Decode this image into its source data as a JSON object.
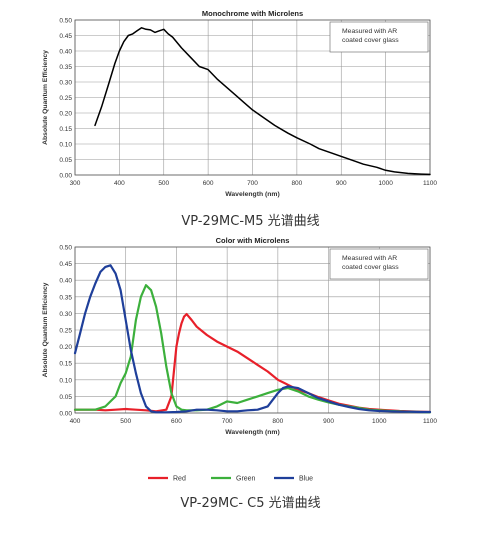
{
  "chart_data": [
    {
      "type": "line",
      "title": "Monochrome with Microlens",
      "xlabel": "Wavelength (nm)",
      "ylabel": "Absolute Quantum Efficiency",
      "xlim": [
        300,
        1100
      ],
      "ylim": [
        0,
        0.5
      ],
      "xticks": [
        "300",
        "400",
        "500",
        "600",
        "700",
        "800",
        "900",
        "1000",
        "1100"
      ],
      "yticks": [
        "0.00",
        "0.05",
        "0.10",
        "0.15",
        "0.20",
        "0.25",
        "0.30",
        "0.35",
        "0.40",
        "0.45",
        "0.50"
      ],
      "annotation": [
        "Measured with AR",
        "coated cover glass"
      ],
      "grid": true,
      "caption": "VP-29MC-M5 光谱曲线",
      "series": [
        {
          "color": "#000000",
          "x": [
            345,
            360,
            375,
            390,
            400,
            410,
            420,
            430,
            440,
            450,
            460,
            470,
            480,
            490,
            500,
            510,
            520,
            540,
            560,
            580,
            600,
            620,
            640,
            660,
            680,
            700,
            720,
            750,
            780,
            800,
            830,
            850,
            880,
            900,
            930,
            950,
            980,
            1000,
            1020,
            1050,
            1080,
            1100
          ],
          "y": [
            0.16,
            0.22,
            0.29,
            0.36,
            0.4,
            0.43,
            0.45,
            0.455,
            0.465,
            0.475,
            0.47,
            0.468,
            0.46,
            0.465,
            0.47,
            0.455,
            0.445,
            0.41,
            0.38,
            0.35,
            0.34,
            0.31,
            0.285,
            0.26,
            0.235,
            0.21,
            0.19,
            0.16,
            0.135,
            0.12,
            0.1,
            0.085,
            0.07,
            0.06,
            0.045,
            0.035,
            0.025,
            0.015,
            0.01,
            0.005,
            0.003,
            0.002
          ]
        }
      ]
    },
    {
      "type": "line",
      "title": "Color with Microlens",
      "xlabel": "Wavelength (nm)",
      "ylabel": "Absolute Quantum Efficiency",
      "xlim": [
        400,
        1100
      ],
      "ylim": [
        0,
        0.5
      ],
      "xticks": [
        "400",
        "500",
        "600",
        "700",
        "800",
        "900",
        "1000",
        "1100"
      ],
      "yticks": [
        "0.00",
        "0.05",
        "0.10",
        "0.15",
        "0.20",
        "0.25",
        "0.30",
        "0.35",
        "0.40",
        "0.45",
        "0.50"
      ],
      "annotation": [
        "Measured with AR",
        "coated cover glass"
      ],
      "grid": true,
      "legend": "bottom",
      "caption": "VP-29MC- C5 光谱曲线",
      "series": [
        {
          "name": "Red",
          "color": "#e8202a",
          "x": [
            400,
            420,
            440,
            460,
            480,
            500,
            520,
            540,
            560,
            580,
            590,
            600,
            605,
            610,
            615,
            620,
            630,
            640,
            660,
            680,
            700,
            720,
            740,
            760,
            780,
            800,
            820,
            840,
            860,
            880,
            900,
            920,
            940,
            960,
            980,
            1000,
            1020,
            1040,
            1060,
            1080,
            1100
          ],
          "y": [
            0.01,
            0.01,
            0.01,
            0.008,
            0.01,
            0.012,
            0.01,
            0.008,
            0.005,
            0.01,
            0.05,
            0.2,
            0.24,
            0.27,
            0.29,
            0.298,
            0.28,
            0.26,
            0.235,
            0.215,
            0.2,
            0.185,
            0.165,
            0.145,
            0.125,
            0.1,
            0.085,
            0.07,
            0.06,
            0.048,
            0.038,
            0.028,
            0.022,
            0.016,
            0.012,
            0.01,
            0.008,
            0.006,
            0.005,
            0.004,
            0.003
          ]
        },
        {
          "name": "Green",
          "color": "#3cb03c",
          "x": [
            400,
            420,
            440,
            460,
            480,
            490,
            500,
            510,
            520,
            530,
            540,
            550,
            560,
            570,
            580,
            590,
            600,
            610,
            620,
            640,
            660,
            680,
            700,
            720,
            740,
            760,
            780,
            800,
            820,
            840,
            860,
            880,
            900,
            920,
            940,
            960,
            980,
            1000,
            1020,
            1040,
            1060,
            1080,
            1100
          ],
          "y": [
            0.01,
            0.01,
            0.01,
            0.02,
            0.05,
            0.09,
            0.12,
            0.17,
            0.28,
            0.35,
            0.385,
            0.37,
            0.32,
            0.24,
            0.14,
            0.06,
            0.02,
            0.01,
            0.008,
            0.008,
            0.01,
            0.02,
            0.035,
            0.03,
            0.04,
            0.05,
            0.06,
            0.07,
            0.075,
            0.065,
            0.05,
            0.04,
            0.032,
            0.025,
            0.02,
            0.015,
            0.01,
            0.008,
            0.006,
            0.005,
            0.004,
            0.003,
            0.002
          ]
        },
        {
          "name": "Blue",
          "color": "#1f3f9a",
          "x": [
            400,
            410,
            420,
            430,
            440,
            450,
            460,
            470,
            480,
            490,
            500,
            510,
            520,
            530,
            540,
            550,
            560,
            580,
            600,
            620,
            640,
            660,
            680,
            700,
            720,
            740,
            760,
            780,
            800,
            810,
            820,
            840,
            860,
            880,
            900,
            920,
            940,
            960,
            980,
            1000,
            1020,
            1040,
            1060,
            1080,
            1100
          ],
          "y": [
            0.18,
            0.24,
            0.3,
            0.35,
            0.39,
            0.425,
            0.44,
            0.445,
            0.42,
            0.37,
            0.28,
            0.19,
            0.12,
            0.06,
            0.02,
            0.005,
            0.002,
            0.002,
            0.003,
            0.005,
            0.01,
            0.01,
            0.008,
            0.005,
            0.005,
            0.008,
            0.01,
            0.02,
            0.06,
            0.075,
            0.08,
            0.075,
            0.06,
            0.045,
            0.035,
            0.025,
            0.018,
            0.012,
            0.008,
            0.006,
            0.005,
            0.004,
            0.004,
            0.003,
            0.003
          ]
        }
      ]
    }
  ]
}
